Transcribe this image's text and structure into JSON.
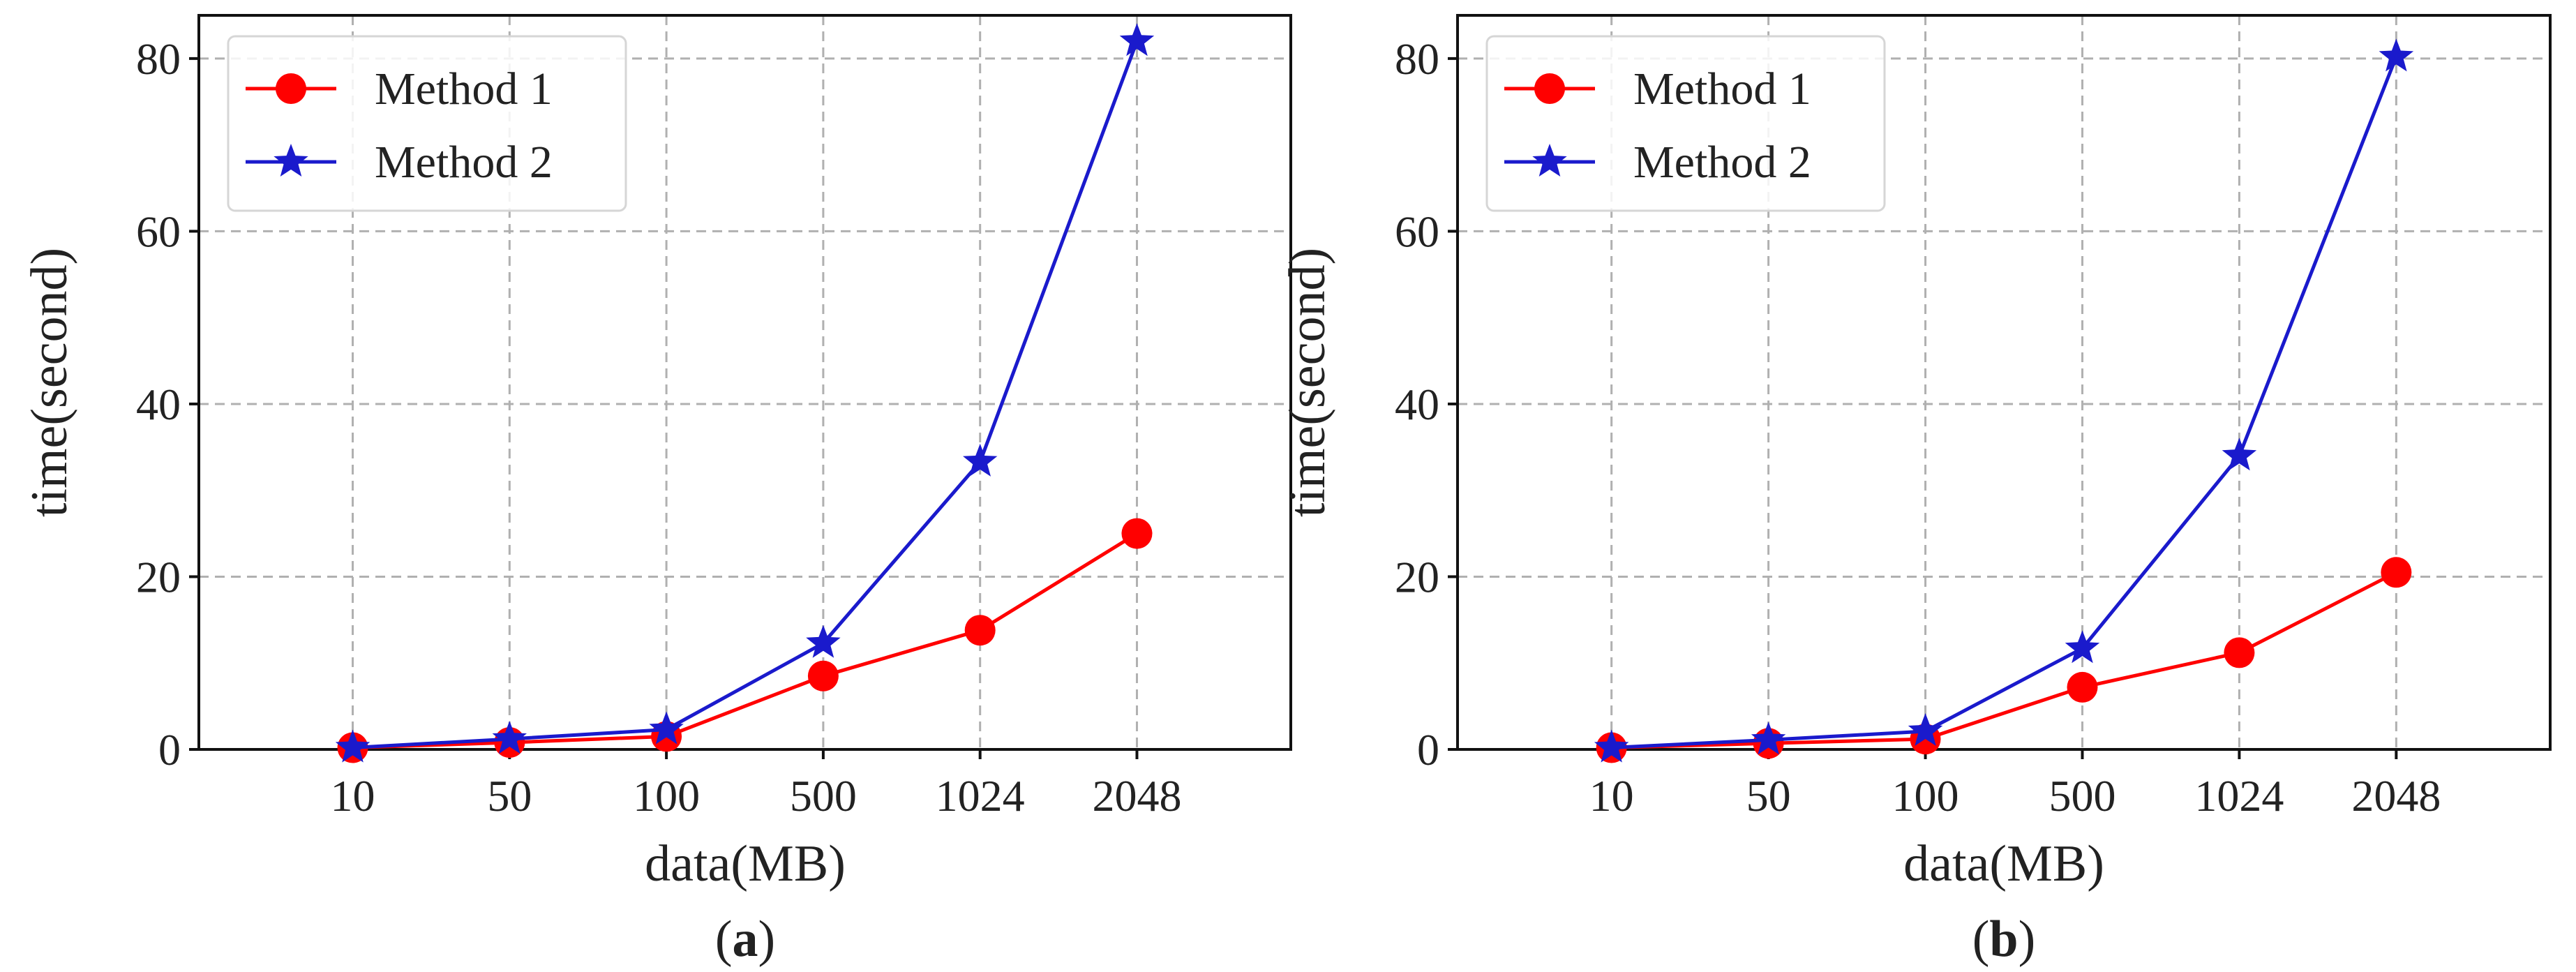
{
  "colors": {
    "method1": "#ff0000",
    "method2": "#1a1acc"
  },
  "chart_data": [
    {
      "id": "a",
      "type": "line",
      "caption": "a",
      "xlabel": "data(MB)",
      "ylabel": "time(second)",
      "categories": [
        "10",
        "50",
        "100",
        "500",
        "1024",
        "2048"
      ],
      "ylim": [
        0,
        85
      ],
      "yticks": [
        0,
        20,
        40,
        60,
        80
      ],
      "grid": true,
      "legend_position": "top-left",
      "series": [
        {
          "name": "Method 1",
          "marker": "circle",
          "color_key": "method1",
          "values": [
            0.2,
            0.8,
            1.5,
            8.5,
            13.8,
            25.0
          ]
        },
        {
          "name": "Method 2",
          "marker": "star",
          "color_key": "method2",
          "values": [
            0.2,
            1.2,
            2.3,
            12.3,
            33.3,
            82.0
          ]
        }
      ]
    },
    {
      "id": "b",
      "type": "line",
      "caption": "b",
      "xlabel": "data(MB)",
      "ylabel": "time(second)",
      "categories": [
        "10",
        "50",
        "100",
        "500",
        "1024",
        "2048"
      ],
      "ylim": [
        0,
        85
      ],
      "yticks": [
        0,
        20,
        40,
        60,
        80
      ],
      "grid": true,
      "legend_position": "top-left",
      "series": [
        {
          "name": "Method 1",
          "marker": "circle",
          "color_key": "method1",
          "values": [
            0.2,
            0.7,
            1.2,
            7.2,
            11.2,
            20.5
          ]
        },
        {
          "name": "Method 2",
          "marker": "star",
          "color_key": "method2",
          "values": [
            0.2,
            1.1,
            2.1,
            11.7,
            34.0,
            80.2
          ]
        }
      ]
    }
  ]
}
